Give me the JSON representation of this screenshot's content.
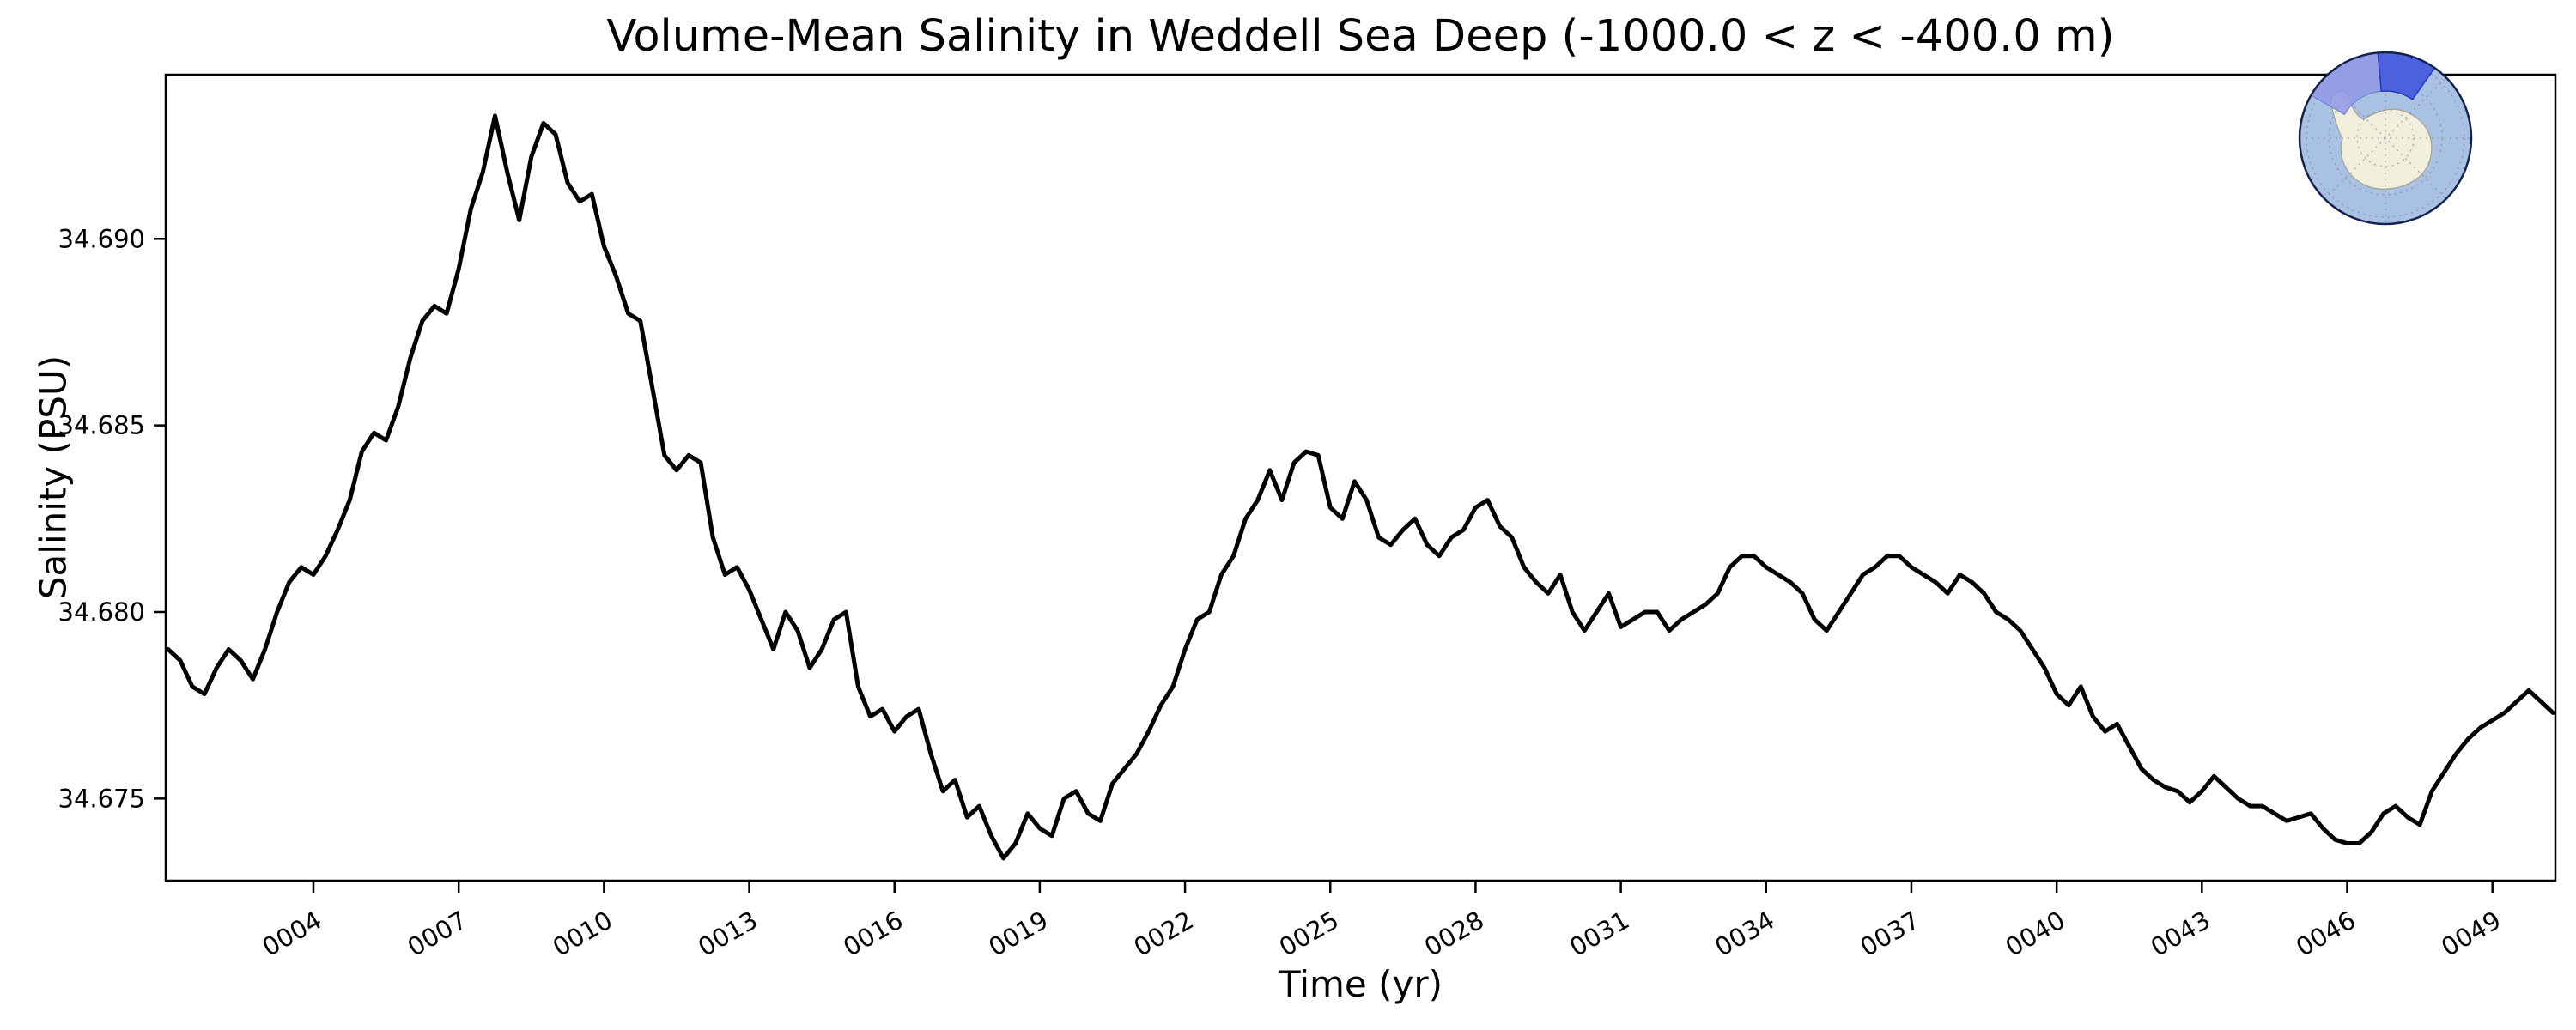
{
  "chart_data": {
    "type": "line",
    "title": "Volume-Mean Salinity in Weddell Sea Deep (-1000.0 < z < -400.0 m)",
    "xlabel": "Time (yr)",
    "ylabel": "Salinity (PSU)",
    "xlim": [
      0.95,
      50.3
    ],
    "ylim": [
      34.6728,
      34.6944
    ],
    "xticks": [
      "0004",
      "0007",
      "0010",
      "0013",
      "0016",
      "0019",
      "0022",
      "0025",
      "0028",
      "0031",
      "0034",
      "0037",
      "0040",
      "0043",
      "0046",
      "0049"
    ],
    "yticks": [
      "34.675",
      "34.680",
      "34.685",
      "34.690"
    ],
    "grid": false,
    "legend": false,
    "line_color": "#000000",
    "x_start": 1.0,
    "x_step": 0.25,
    "x_units": "yr",
    "series": [
      {
        "name": "volume-mean salinity (PSU)",
        "values": [
          34.679,
          34.6787,
          34.678,
          34.6778,
          34.6785,
          34.679,
          34.6787,
          34.6782,
          34.679,
          34.68,
          34.6808,
          34.6812,
          34.681,
          34.6815,
          34.6822,
          34.683,
          34.6843,
          34.6848,
          34.6846,
          34.6855,
          34.6868,
          34.6878,
          34.6882,
          34.688,
          34.6892,
          34.6908,
          34.6918,
          34.6933,
          34.6918,
          34.6905,
          34.6922,
          34.6931,
          34.6928,
          34.6915,
          34.691,
          34.6912,
          34.6898,
          34.689,
          34.688,
          34.6878,
          34.686,
          34.6842,
          34.6838,
          34.6842,
          34.684,
          34.682,
          34.681,
          34.6812,
          34.6806,
          34.6798,
          34.679,
          34.68,
          34.6795,
          34.6785,
          34.679,
          34.6798,
          34.68,
          34.678,
          34.6772,
          34.6774,
          34.6768,
          34.6772,
          34.6774,
          34.6762,
          34.6752,
          34.6755,
          34.6745,
          34.6748,
          34.674,
          34.6734,
          34.6738,
          34.6746,
          34.6742,
          34.674,
          34.675,
          34.6752,
          34.6746,
          34.6744,
          34.6754,
          34.6758,
          34.6762,
          34.6768,
          34.6775,
          34.678,
          34.679,
          34.6798,
          34.68,
          34.681,
          34.6815,
          34.6825,
          34.683,
          34.6838,
          34.683,
          34.684,
          34.6843,
          34.6842,
          34.6828,
          34.6825,
          34.6835,
          34.683,
          34.682,
          34.6818,
          34.6822,
          34.6825,
          34.6818,
          34.6815,
          34.682,
          34.6822,
          34.6828,
          34.683,
          34.6823,
          34.682,
          34.6812,
          34.6808,
          34.6805,
          34.681,
          34.68,
          34.6795,
          34.68,
          34.6805,
          34.6796,
          34.6798,
          34.68,
          34.68,
          34.6795,
          34.6798,
          34.68,
          34.6802,
          34.6805,
          34.6812,
          34.6815,
          34.6815,
          34.6812,
          34.681,
          34.6808,
          34.6805,
          34.6798,
          34.6795,
          34.68,
          34.6805,
          34.681,
          34.6812,
          34.6815,
          34.6815,
          34.6812,
          34.681,
          34.6808,
          34.6805,
          34.681,
          34.6808,
          34.6805,
          34.68,
          34.6798,
          34.6795,
          34.679,
          34.6785,
          34.6778,
          34.6775,
          34.678,
          34.6772,
          34.6768,
          34.677,
          34.6764,
          34.6758,
          34.6755,
          34.6753,
          34.6752,
          34.6749,
          34.6752,
          34.6756,
          34.6753,
          34.675,
          34.6748,
          34.6748,
          34.6746,
          34.6744,
          34.6745,
          34.6746,
          34.6742,
          34.6739,
          34.6738,
          34.6738,
          34.6741,
          34.6746,
          34.6748,
          34.6745,
          34.6743,
          34.6752,
          34.6757,
          34.6762,
          34.6766,
          34.6769,
          34.6771,
          34.6773,
          34.6776,
          34.6779,
          34.6776,
          34.6773
        ]
      }
    ]
  },
  "inset": {
    "description": "South polar stereographic map of Antarctica with Weddell Sea sector highlighted",
    "colors": {
      "ocean": "#a9c2e4",
      "land": "#f1eedb",
      "land_edge": "#9a9a8a",
      "region_light": "#8f98e8",
      "region_dark": "#4156dd",
      "region_dark_edge": "#2236c0",
      "graticule": "#777777",
      "border": "#14204d"
    }
  }
}
